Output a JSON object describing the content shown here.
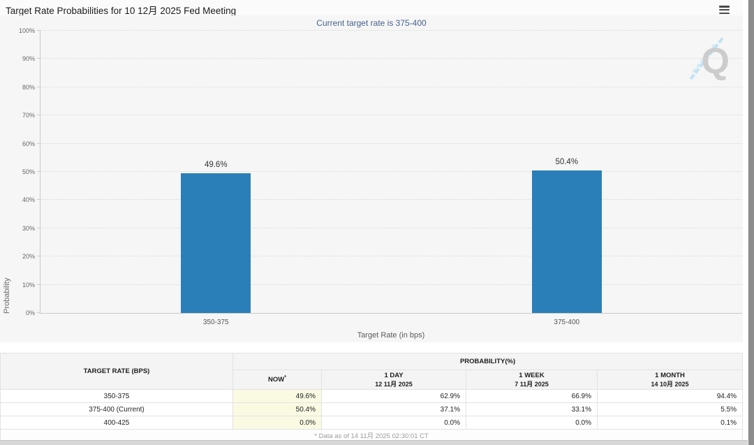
{
  "header": {
    "menu_icon": "hamburger-icon"
  },
  "chart_data": {
    "type": "bar",
    "title": "Target Rate Probabilities for 10 12月 2025 Fed Meeting",
    "subtitle": "Current target rate is 375-400",
    "categories": [
      "350-375",
      "375-400"
    ],
    "values": [
      49.6,
      50.4
    ],
    "value_labels": [
      "49.6%",
      "50.4%"
    ],
    "xlabel": "Target Rate (in bps)",
    "ylabel": "Probability",
    "ylim": [
      0,
      100
    ],
    "yticks": [
      0,
      10,
      20,
      30,
      40,
      50,
      60,
      70,
      80,
      90,
      100
    ],
    "ytick_labels": [
      "0%",
      "10%",
      "20%",
      "30%",
      "40%",
      "50%",
      "60%",
      "70%",
      "80%",
      "90%",
      "100%"
    ],
    "grid": "horizontal-dotted",
    "legend": "none",
    "bar_color": "#2b7fb8",
    "watermark_letter": "Q"
  },
  "table": {
    "rate_header": "TARGET RATE (BPS)",
    "prob_header": "PROBABILITY(%)",
    "columns": [
      {
        "label": "NOW",
        "note": "*",
        "sub": ""
      },
      {
        "label": "1 DAY",
        "note": "",
        "sub": "12 11月 2025"
      },
      {
        "label": "1 WEEK",
        "note": "",
        "sub": "7 11月 2025"
      },
      {
        "label": "1 MONTH",
        "note": "",
        "sub": "14 10月 2025"
      }
    ],
    "rows": [
      {
        "rate": "350-375",
        "values": [
          "49.6%",
          "62.9%",
          "66.9%",
          "94.4%"
        ]
      },
      {
        "rate": "375-400 (Current)",
        "values": [
          "50.4%",
          "37.1%",
          "33.1%",
          "5.5%"
        ]
      },
      {
        "rate": "400-425",
        "values": [
          "0.0%",
          "0.0%",
          "0.0%",
          "0.1%"
        ]
      }
    ],
    "footnote": "* Data as of 14 11月 2025 02:30:01 CT"
  },
  "colors": {
    "bar": "#2b7fb8",
    "subtitle_text": "#44618b",
    "now_column_bg": "#fafae3",
    "chart_bg": "#f6f6f6",
    "scrollbar_thumb": "#8d8d8d"
  }
}
